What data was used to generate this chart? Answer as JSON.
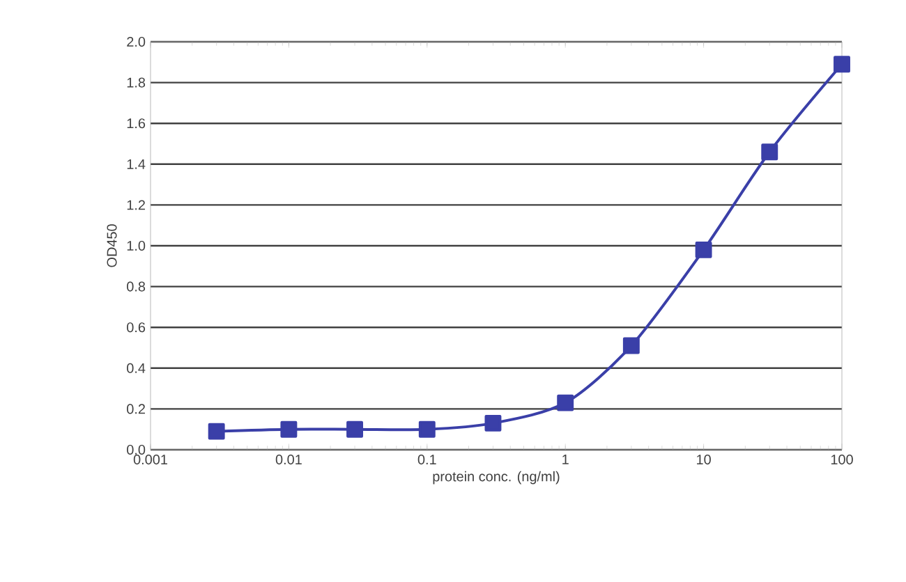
{
  "chart_data": {
    "type": "line",
    "xlabel": "protein conc. (ng/ml)",
    "ylabel": "OD450",
    "x": [
      0.003,
      0.01,
      0.03,
      0.1,
      0.3,
      1,
      3,
      10,
      30,
      100
    ],
    "values": [
      0.09,
      0.1,
      0.1,
      0.1,
      0.13,
      0.23,
      0.51,
      0.98,
      1.46,
      1.89
    ],
    "color": "#3a3fa8",
    "marker": "square",
    "line_style": "solid",
    "log": "x",
    "grid": "y",
    "xlim": [
      0.001,
      100
    ],
    "ylim": [
      0,
      2.0
    ],
    "xticks": [
      0.001,
      0.01,
      0.1,
      1,
      10,
      100
    ],
    "yticks": [
      {
        "value": 0,
        "label": "0.0"
      },
      {
        "value": 0.2,
        "label": "0.2"
      },
      {
        "value": 0.4,
        "label": "0.4"
      },
      {
        "value": 0.6,
        "label": "0.6"
      },
      {
        "value": 0.8,
        "label": "0.8"
      },
      {
        "value": 1.0,
        "label": "1.0"
      },
      {
        "value": 1.2,
        "label": "1.2"
      },
      {
        "value": 1.4,
        "label": "1.4"
      },
      {
        "value": 1.6,
        "label": "1.6"
      },
      {
        "value": 1.8,
        "label": "1.8"
      },
      {
        "value": 2.0,
        "label": "2.0"
      }
    ]
  }
}
